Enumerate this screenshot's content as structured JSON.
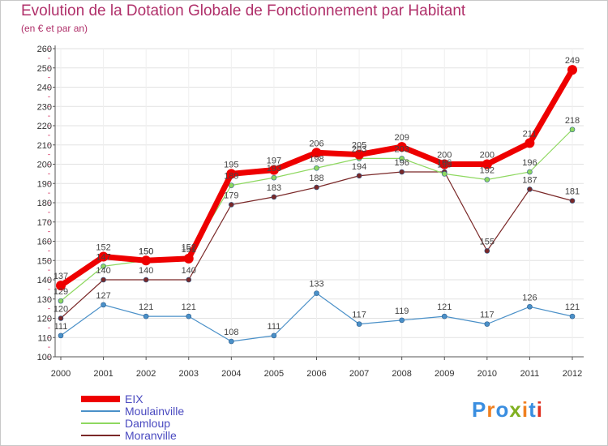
{
  "header": {
    "title": "Evolution de la Dotation Globale de Fonctionnement par Habitant",
    "subtitle": "(en € et par an)"
  },
  "logo": {
    "text": "Proxiti",
    "colors": [
      "#3a8ee0",
      "#f08020",
      "#3a8ee0",
      "#80b020",
      "#f08020",
      "#3a8ee0",
      "#e03020"
    ]
  },
  "chart_data": {
    "type": "line",
    "title": "Evolution de la Dotation Globale de Fonctionnement par Habitant",
    "subtitle": "(en € et par an)",
    "xlabel": "",
    "ylabel": "",
    "x": [
      "2000",
      "2001",
      "2002",
      "2003",
      "2004",
      "2005",
      "2006",
      "2007",
      "2008",
      "2009",
      "2010",
      "2011",
      "2012"
    ],
    "ylim": [
      100,
      260
    ],
    "yticks": [
      100,
      110,
      120,
      130,
      140,
      150,
      160,
      170,
      180,
      190,
      200,
      210,
      220,
      230,
      240,
      250,
      260
    ],
    "grid": true,
    "legend": "bottom-left",
    "series": [
      {
        "name": "EIX",
        "color": "#ee0000",
        "values": [
          137,
          152,
          150,
          151,
          195,
          197,
          206,
          205,
          209,
          200,
          200,
          211,
          249
        ],
        "labels": [
          "137",
          "152",
          "150",
          "151",
          "195",
          "197",
          "206",
          "205",
          "209",
          "200",
          "200",
          "211",
          "249"
        ]
      },
      {
        "name": "Moulainville",
        "color": "#4a90c8",
        "values": [
          111,
          127,
          121,
          121,
          108,
          111,
          133,
          117,
          119,
          121,
          117,
          126,
          121
        ],
        "labels": [
          "111",
          "127",
          "121",
          "121",
          "108",
          "111",
          "133",
          "117",
          "119",
          "121",
          "117",
          "126",
          "121"
        ]
      },
      {
        "name": "Damloup",
        "color": "#8ed860",
        "values": [
          129,
          147,
          150,
          152,
          189,
          193,
          198,
          203,
          203,
          195,
          192,
          196,
          218
        ],
        "labels": [
          "129",
          "147",
          "150",
          "152",
          "189",
          "193",
          "198",
          "203",
          "203",
          "195",
          "192",
          "196",
          "218"
        ]
      },
      {
        "name": "Moranville",
        "color": "#7a2828",
        "values": [
          120,
          140,
          140,
          140,
          179,
          183,
          188,
          194,
          196,
          196,
          155,
          187,
          181
        ],
        "labels": [
          "120",
          "140",
          "140",
          "140",
          "179",
          "183",
          "188",
          "194",
          "196",
          "196",
          "155",
          "187",
          "181"
        ]
      }
    ]
  }
}
